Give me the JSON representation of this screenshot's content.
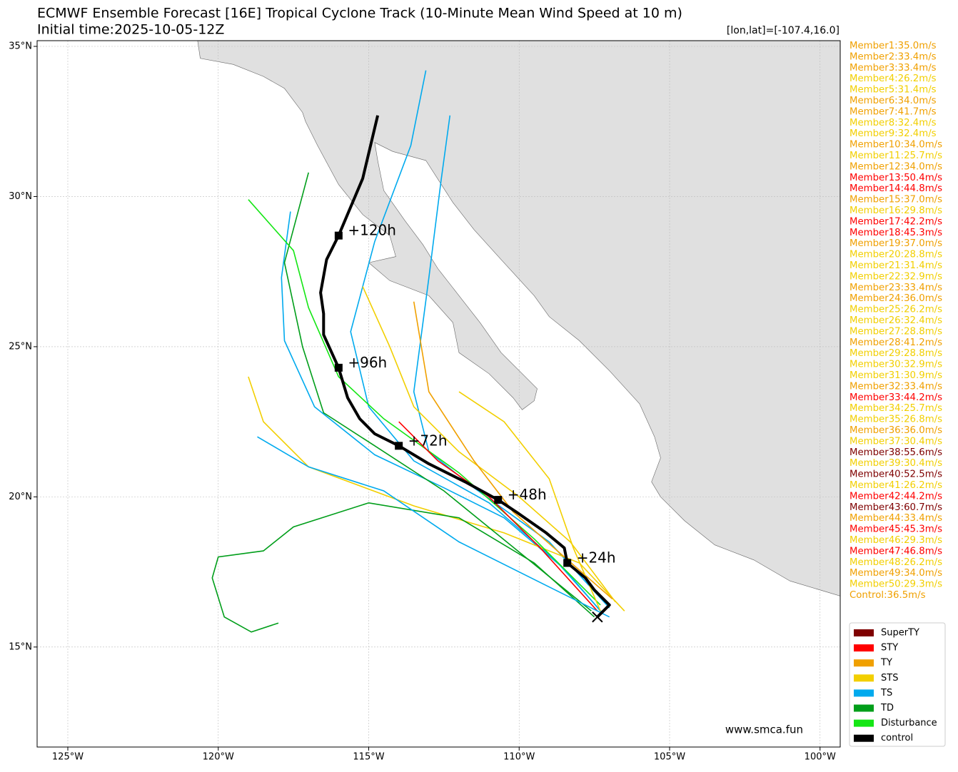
{
  "chart_data": {
    "type": "track-map",
    "title": "ECMWF Ensemble Forecast [16E] Tropical Cyclone Track (10-Minute Mean Wind Speed at 10 m)",
    "subtitle": "Initial time:2025-10-05-12Z",
    "position_label": "[lon,lat]=[-107.4,16.0]",
    "watermark": "www.smca.fun",
    "xlim": [
      -126.02,
      -99.33
    ],
    "ylim": [
      11.67,
      35.19
    ],
    "xticks": [
      {
        "value": -125,
        "label": "125°W"
      },
      {
        "value": -120,
        "label": "120°W"
      },
      {
        "value": -115,
        "label": "115°W"
      },
      {
        "value": -110,
        "label": "110°W"
      },
      {
        "value": -105,
        "label": "105°W"
      },
      {
        "value": -100,
        "label": "100°W"
      }
    ],
    "yticks": [
      {
        "value": 15,
        "label": "15°N"
      },
      {
        "value": 20,
        "label": "20°N"
      },
      {
        "value": 25,
        "label": "25°N"
      },
      {
        "value": 30,
        "label": "30°N"
      },
      {
        "value": 35,
        "label": "35°N"
      }
    ],
    "grid": true,
    "legend": [
      {
        "name": "SuperTY",
        "color": "#7f0000"
      },
      {
        "name": "STY",
        "color": "#ff0000"
      },
      {
        "name": "TY",
        "color": "#f0a000"
      },
      {
        "name": "STS",
        "color": "#f2cf00"
      },
      {
        "name": "TS",
        "color": "#00aaee"
      },
      {
        "name": "TD",
        "color": "#009e1a"
      },
      {
        "name": "Disturbance",
        "color": "#14e614"
      },
      {
        "name": "control",
        "color": "#000000"
      }
    ],
    "members": [
      {
        "label": "Member1:35.0m/s",
        "category": "TY"
      },
      {
        "label": "Member2:33.4m/s",
        "category": "TY"
      },
      {
        "label": "Member3:33.4m/s",
        "category": "TY"
      },
      {
        "label": "Member4:26.2m/s",
        "category": "STS"
      },
      {
        "label": "Member5:31.4m/s",
        "category": "STS"
      },
      {
        "label": "Member6:34.0m/s",
        "category": "TY"
      },
      {
        "label": "Member7:41.7m/s",
        "category": "TY"
      },
      {
        "label": "Member8:32.4m/s",
        "category": "STS"
      },
      {
        "label": "Member9:32.4m/s",
        "category": "STS"
      },
      {
        "label": "Member10:34.0m/s",
        "category": "TY"
      },
      {
        "label": "Member11:25.7m/s",
        "category": "STS"
      },
      {
        "label": "Member12:34.0m/s",
        "category": "TY"
      },
      {
        "label": "Member13:50.4m/s",
        "category": "STY"
      },
      {
        "label": "Member14:44.8m/s",
        "category": "STY"
      },
      {
        "label": "Member15:37.0m/s",
        "category": "TY"
      },
      {
        "label": "Member16:29.8m/s",
        "category": "STS"
      },
      {
        "label": "Member17:42.2m/s",
        "category": "STY"
      },
      {
        "label": "Member18:45.3m/s",
        "category": "STY"
      },
      {
        "label": "Member19:37.0m/s",
        "category": "TY"
      },
      {
        "label": "Member20:28.8m/s",
        "category": "STS"
      },
      {
        "label": "Member21:31.4m/s",
        "category": "STS"
      },
      {
        "label": "Member22:32.9m/s",
        "category": "STS"
      },
      {
        "label": "Member23:33.4m/s",
        "category": "TY"
      },
      {
        "label": "Member24:36.0m/s",
        "category": "TY"
      },
      {
        "label": "Member25:26.2m/s",
        "category": "STS"
      },
      {
        "label": "Member26:32.4m/s",
        "category": "STS"
      },
      {
        "label": "Member27:28.8m/s",
        "category": "STS"
      },
      {
        "label": "Member28:41.2m/s",
        "category": "TY"
      },
      {
        "label": "Member29:28.8m/s",
        "category": "STS"
      },
      {
        "label": "Member30:32.9m/s",
        "category": "STS"
      },
      {
        "label": "Member31:30.9m/s",
        "category": "STS"
      },
      {
        "label": "Member32:33.4m/s",
        "category": "TY"
      },
      {
        "label": "Member33:44.2m/s",
        "category": "STY"
      },
      {
        "label": "Member34:25.7m/s",
        "category": "STS"
      },
      {
        "label": "Member35:26.8m/s",
        "category": "STS"
      },
      {
        "label": "Member36:36.0m/s",
        "category": "TY"
      },
      {
        "label": "Member37:30.4m/s",
        "category": "STS"
      },
      {
        "label": "Member38:55.6m/s",
        "category": "SuperTY"
      },
      {
        "label": "Member39:30.4m/s",
        "category": "STS"
      },
      {
        "label": "Member40:52.5m/s",
        "category": "SuperTY"
      },
      {
        "label": "Member41:26.2m/s",
        "category": "STS"
      },
      {
        "label": "Member42:44.2m/s",
        "category": "STY"
      },
      {
        "label": "Member43:60.7m/s",
        "category": "SuperTY"
      },
      {
        "label": "Member44:33.4m/s",
        "category": "TY"
      },
      {
        "label": "Member45:45.3m/s",
        "category": "STY"
      },
      {
        "label": "Member46:29.3m/s",
        "category": "STS"
      },
      {
        "label": "Member47:46.8m/s",
        "category": "STY"
      },
      {
        "label": "Member48:26.2m/s",
        "category": "STS"
      },
      {
        "label": "Member49:34.0m/s",
        "category": "TY"
      },
      {
        "label": "Member50:29.3m/s",
        "category": "STS"
      }
    ],
    "control_label": {
      "label": "Control:36.5m/s",
      "category": "TY"
    },
    "tracks": [
      {
        "category": "TS",
        "lon": [
          -107.3,
          -108.5,
          -110.5,
          -112.5,
          -114.8,
          -116.8,
          -117.8,
          -117.9,
          -117.6
        ],
        "lat": [
          16.2,
          17.6,
          19.3,
          20.3,
          21.4,
          23.0,
          25.2,
          27.3,
          29.5
        ]
      },
      {
        "category": "TS",
        "lon": [
          -107.2,
          -108.8,
          -111.0,
          -113.5,
          -115.0,
          -115.6,
          -114.8,
          -113.6,
          -113.1
        ],
        "lat": [
          16.1,
          17.9,
          19.8,
          21.2,
          23.0,
          25.5,
          28.5,
          31.7,
          34.2
        ]
      },
      {
        "category": "TS",
        "lon": [
          -107.0,
          -109.0,
          -111.5,
          -113.0,
          -113.5,
          -113.0,
          -112.6,
          -112.3
        ],
        "lat": [
          16.3,
          18.5,
          20.3,
          21.5,
          23.5,
          27.3,
          30.5,
          32.7
        ]
      },
      {
        "category": "STS",
        "lon": [
          -106.8,
          -108.3,
          -110.0,
          -112.0,
          -113.5,
          -114.3,
          -115.2
        ],
        "lat": [
          16.5,
          18.5,
          20.0,
          21.5,
          23.0,
          25.0,
          27.0
        ]
      },
      {
        "category": "STS",
        "lon": [
          -106.5,
          -108.0,
          -110.5,
          -113.5,
          -117.0,
          -118.5,
          -119.0
        ],
        "lat": [
          16.2,
          17.8,
          18.8,
          19.7,
          21.0,
          22.5,
          24.0
        ]
      },
      {
        "category": "TD",
        "lon": [
          -107.5,
          -109.5,
          -112.0,
          -115.0,
          -117.5,
          -118.5,
          -120.0,
          -120.2,
          -119.8,
          -118.9,
          -118.0
        ],
        "lat": [
          16.0,
          17.8,
          19.3,
          19.8,
          19.0,
          18.2,
          18.0,
          17.3,
          16.0,
          15.5,
          15.8
        ]
      },
      {
        "category": "TD",
        "lon": [
          -107.6,
          -109.8,
          -112.5,
          -114.8,
          -116.5,
          -117.2,
          -117.8,
          -117.0
        ],
        "lat": [
          16.2,
          18.0,
          20.2,
          21.7,
          22.8,
          25.0,
          27.8,
          30.8
        ]
      },
      {
        "category": "Disturbance",
        "lon": [
          -107.3,
          -109.5,
          -112.0,
          -114.5,
          -116.0,
          -117.0,
          -117.5,
          -119.0
        ],
        "lat": [
          16.4,
          18.6,
          20.8,
          22.6,
          24.0,
          26.3,
          28.2,
          29.9
        ]
      },
      {
        "category": "STY",
        "lon": [
          -107.4,
          -109.3,
          -111.0,
          -112.7,
          -114.0
        ],
        "lat": [
          16.2,
          18.3,
          20.0,
          21.2,
          22.5
        ]
      },
      {
        "category": "TY",
        "lon": [
          -106.9,
          -108.5,
          -110.2,
          -111.5,
          -113.0,
          -113.5
        ],
        "lat": [
          16.6,
          18.0,
          19.5,
          21.2,
          23.5,
          26.5
        ]
      },
      {
        "category": "TS",
        "lon": [
          -107.0,
          -109.0,
          -112.0,
          -114.5,
          -117.0,
          -118.7
        ],
        "lat": [
          16.0,
          17.0,
          18.5,
          20.2,
          21.0,
          22.0
        ]
      },
      {
        "category": "STS",
        "lon": [
          -107.3,
          -108.2,
          -109.0,
          -110.5,
          -112.0
        ],
        "lat": [
          16.2,
          18.3,
          20.6,
          22.5,
          23.5
        ]
      }
    ],
    "control": {
      "lon": [
        -107.4,
        -107.0,
        -107.5,
        -107.8,
        -108.4,
        -108.5,
        -109.1,
        -110.1,
        -110.7,
        -111.8,
        -113.0,
        -114.0,
        -114.8,
        -115.3,
        -115.7,
        -116.0,
        -116.5,
        -116.5,
        -116.6,
        -116.4,
        -116.0,
        -115.2,
        -114.7
      ],
      "lat": [
        16.0,
        16.4,
        16.9,
        17.3,
        17.8,
        18.3,
        18.8,
        19.5,
        19.9,
        20.5,
        21.1,
        21.7,
        22.1,
        22.6,
        23.3,
        24.3,
        25.4,
        26.1,
        26.8,
        27.9,
        28.7,
        30.6,
        32.7
      ],
      "markers": [
        {
          "lon": -108.4,
          "lat": 17.8,
          "label": "+24h"
        },
        {
          "lon": -110.7,
          "lat": 19.9,
          "label": "+48h"
        },
        {
          "lon": -114.0,
          "lat": 21.7,
          "label": "+72h"
        },
        {
          "lon": -116.0,
          "lat": 24.3,
          "label": "+96h"
        },
        {
          "lon": -116.0,
          "lat": 28.7,
          "label": "+120h"
        }
      ]
    }
  }
}
